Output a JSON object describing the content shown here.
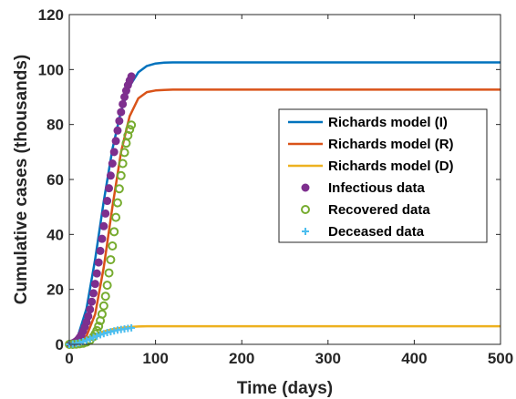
{
  "chart_data": {
    "type": "line",
    "title": "",
    "xlabel": "Time (days)",
    "ylabel": "Cumulative cases (thousands)",
    "xlim": [
      0,
      500
    ],
    "ylim": [
      0,
      120
    ],
    "xticks": [
      0,
      100,
      200,
      300,
      400,
      500
    ],
    "yticks": [
      0,
      20,
      40,
      60,
      80,
      100,
      120
    ],
    "grid": false,
    "legend_position": "right",
    "series": [
      {
        "name": "Richards model (I)",
        "kind": "line",
        "color": "#0072BD",
        "x": [
          0,
          10,
          20,
          30,
          40,
          50,
          60,
          70,
          80,
          90,
          100,
          110,
          120,
          140,
          160,
          200,
          300,
          400,
          500
        ],
        "y": [
          0,
          3,
          13,
          31,
          52,
          71,
          85,
          94,
          99,
          101.3,
          102.2,
          102.5,
          102.6,
          102.6,
          102.6,
          102.6,
          102.6,
          102.6,
          102.6
        ]
      },
      {
        "name": "Richards model (R)",
        "kind": "line",
        "color": "#D95319",
        "x": [
          0,
          10,
          20,
          30,
          40,
          50,
          60,
          70,
          80,
          90,
          100,
          110,
          120,
          140,
          160,
          200,
          300,
          400,
          500
        ],
        "y": [
          0,
          0.5,
          3,
          11,
          28,
          50,
          70,
          83,
          89.5,
          91.8,
          92.4,
          92.6,
          92.7,
          92.7,
          92.7,
          92.7,
          92.7,
          92.7,
          92.7
        ]
      },
      {
        "name": "Richards model (D)",
        "kind": "line",
        "color": "#EDB120",
        "x": [
          0,
          10,
          20,
          30,
          40,
          50,
          60,
          70,
          80,
          90,
          100,
          110,
          120,
          200,
          300,
          400,
          500
        ],
        "y": [
          0,
          0.8,
          2.2,
          3.6,
          4.7,
          5.5,
          6.0,
          6.3,
          6.5,
          6.6,
          6.6,
          6.6,
          6.6,
          6.6,
          6.6,
          6.6,
          6.6
        ]
      },
      {
        "name": "Infectious data",
        "kind": "filled-circle",
        "color": "#7E2F8E",
        "x": [
          0,
          2,
          4,
          6,
          8,
          10,
          12,
          14,
          16,
          18,
          20,
          22,
          24,
          26,
          28,
          30,
          32,
          34,
          36,
          38,
          40,
          42,
          44,
          46,
          48,
          50,
          52,
          54,
          56,
          58,
          60,
          62,
          64,
          66,
          68,
          70,
          72
        ],
        "y": [
          0.1,
          0.2,
          0.4,
          0.7,
          1.1,
          1.7,
          2.5,
          3.5,
          4.8,
          6.3,
          8.1,
          10.2,
          12.7,
          15.5,
          18.6,
          22,
          25.8,
          29.8,
          34,
          38.4,
          43,
          47.6,
          52.2,
          56.8,
          61.4,
          65.8,
          70,
          74,
          77.8,
          81.3,
          84.5,
          87.4,
          90,
          92.3,
          94.3,
          96,
          97.5
        ]
      },
      {
        "name": "Recovered data",
        "kind": "open-circle",
        "color": "#77AC30",
        "x": [
          0,
          4,
          8,
          12,
          16,
          20,
          24,
          28,
          30,
          32,
          34,
          36,
          38,
          40,
          42,
          44,
          46,
          48,
          50,
          52,
          54,
          56,
          58,
          60,
          62,
          64,
          66,
          68,
          70,
          72
        ],
        "y": [
          0,
          0,
          0.1,
          0.2,
          0.4,
          0.8,
          1.5,
          2.8,
          3.8,
          5,
          6.6,
          8.6,
          11,
          14,
          17.5,
          21.5,
          26,
          30.8,
          35.8,
          41,
          46.2,
          51.5,
          56.6,
          61.4,
          65.8,
          69.8,
          73.2,
          76,
          78.2,
          79.8
        ]
      },
      {
        "name": "Deceased data",
        "kind": "plus",
        "color": "#4DBEEE",
        "x": [
          0,
          4,
          8,
          12,
          16,
          20,
          24,
          28,
          32,
          36,
          40,
          44,
          48,
          52,
          56,
          60,
          64,
          68,
          72
        ],
        "y": [
          0,
          0.1,
          0.3,
          0.6,
          1,
          1.5,
          2,
          2.5,
          3,
          3.5,
          3.9,
          4.3,
          4.6,
          4.9,
          5.2,
          5.4,
          5.6,
          5.8,
          6
        ]
      }
    ]
  }
}
